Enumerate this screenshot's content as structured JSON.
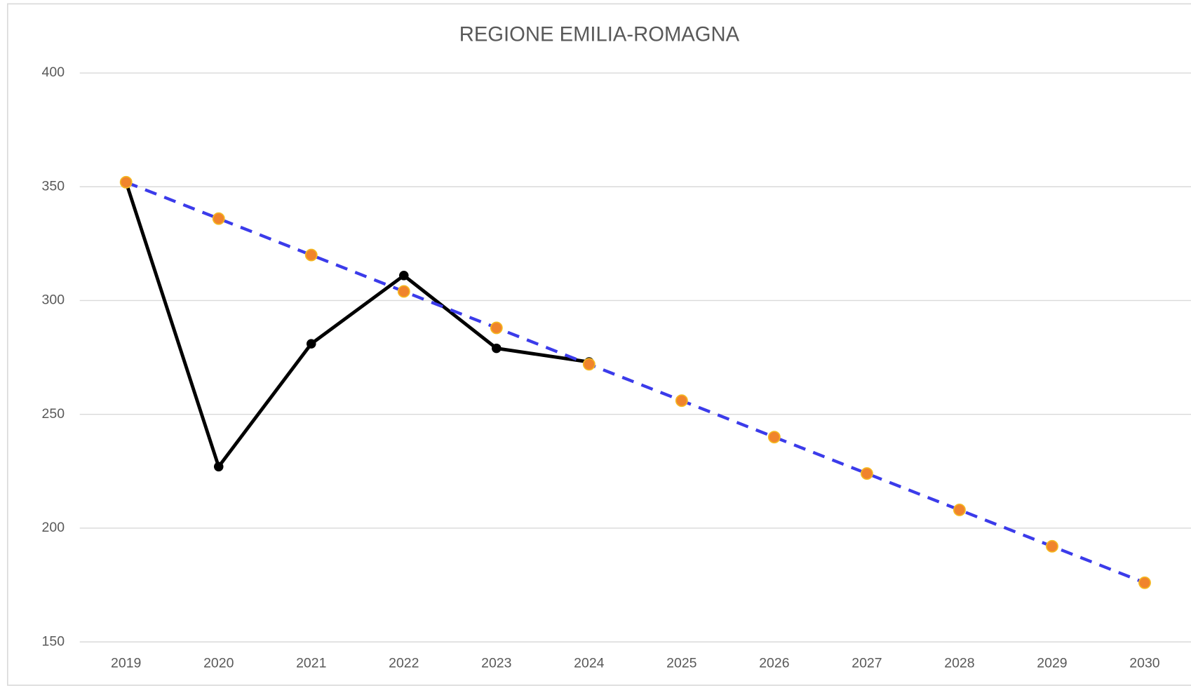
{
  "chart_data": {
    "type": "line",
    "title": "REGIONE EMILIA-ROMAGNA",
    "categories": [
      "2019",
      "2020",
      "2021",
      "2022",
      "2023",
      "2024",
      "2025",
      "2026",
      "2027",
      "2028",
      "2029",
      "2030"
    ],
    "series": [
      {
        "color": "#000000",
        "marker_color": "#000000",
        "dashed": false,
        "values": [
          352,
          227,
          281,
          311,
          279,
          273,
          null,
          null,
          null,
          null,
          null,
          null
        ]
      },
      {
        "color": "#3b3bea",
        "marker_color": "#f0842c",
        "marker_edge": "#f5b820",
        "dashed": true,
        "values": [
          352,
          336,
          320,
          304,
          288,
          272,
          256,
          240,
          224,
          208,
          192,
          176
        ]
      }
    ],
    "ylim": [
      150,
      400
    ],
    "yticks": [
      150,
      200,
      250,
      300,
      350,
      400
    ],
    "grid": true
  }
}
